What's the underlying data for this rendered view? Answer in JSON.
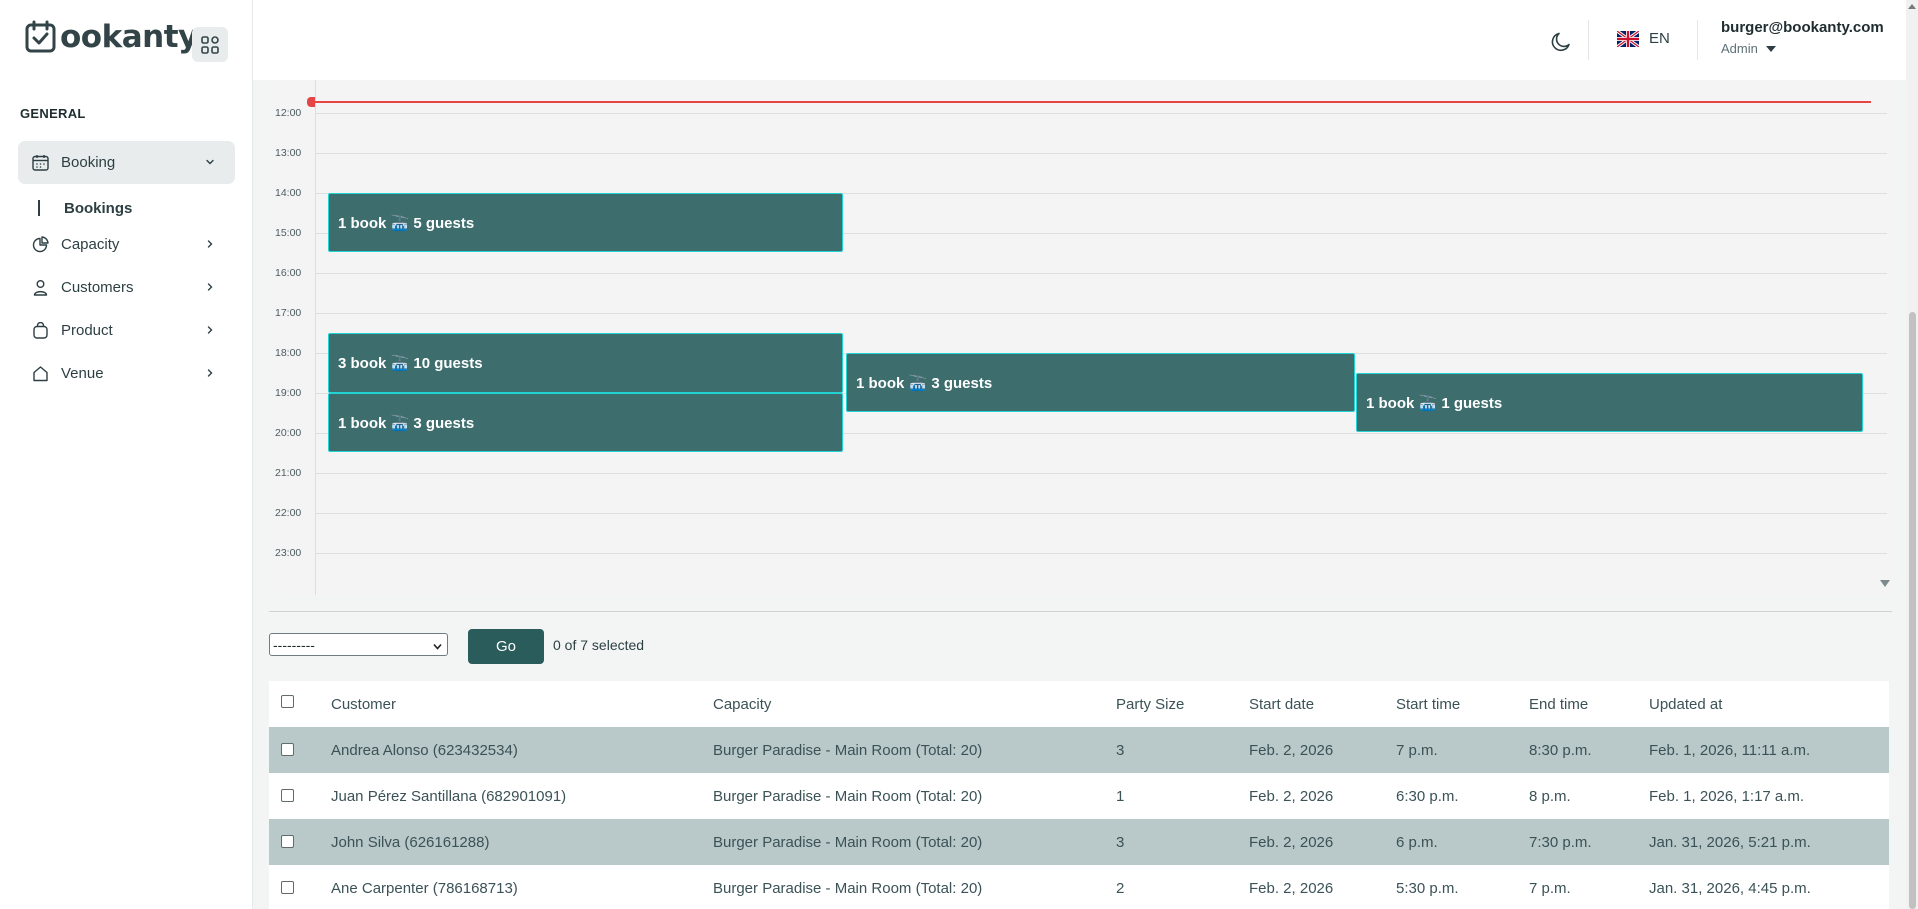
{
  "brand": {
    "logo_text": "ookanty"
  },
  "sidebar": {
    "section_label": "GENERAL",
    "items": [
      {
        "label": "Booking",
        "icon": "calendar-icon"
      },
      {
        "label": "Capacity",
        "icon": "pie-chart-icon"
      },
      {
        "label": "Customers",
        "icon": "user-icon"
      },
      {
        "label": "Product",
        "icon": "bag-icon"
      },
      {
        "label": "Venue",
        "icon": "home-icon"
      }
    ],
    "sub_item": {
      "label": "Bookings"
    }
  },
  "header": {
    "language": "EN",
    "user_email": "burger@bookanty.com",
    "user_role": "Admin"
  },
  "calendar": {
    "hours": [
      "12:00",
      "13:00",
      "14:00",
      "15:00",
      "16:00",
      "17:00",
      "18:00",
      "19:00",
      "20:00",
      "21:00",
      "22:00",
      "23:00"
    ],
    "events": [
      {
        "text": "1 book 🚠 5 guests"
      },
      {
        "text": "3 book 🚠 10 guests"
      },
      {
        "text": "1 book 🚠 3 guests"
      },
      {
        "text": "1 book 🚠 3 guests"
      },
      {
        "text": "1 book 🚠 1 guests"
      }
    ]
  },
  "actions": {
    "select_value": "---------",
    "go_label": "Go",
    "selected_text": "0 of 7 selected"
  },
  "table": {
    "columns": [
      "Customer",
      "Capacity",
      "Party Size",
      "Start date",
      "Start time",
      "End time",
      "Updated at"
    ],
    "rows": [
      [
        "Andrea Alonso (623432534)",
        "Burger Paradise - Main Room (Total: 20)",
        "3",
        "Feb. 2, 2026",
        "7 p.m.",
        "8:30 p.m.",
        "Feb. 1, 2026, 11:11 a.m."
      ],
      [
        "Juan Pérez Santillana (682901091)",
        "Burger Paradise - Main Room (Total: 20)",
        "1",
        "Feb. 2, 2026",
        "6:30 p.m.",
        "8 p.m.",
        "Feb. 1, 2026, 1:17 a.m."
      ],
      [
        "John Silva (626161288)",
        "Burger Paradise - Main Room (Total: 20)",
        "3",
        "Feb. 2, 2026",
        "6 p.m.",
        "7:30 p.m.",
        "Jan. 31, 2026, 5:21 p.m."
      ],
      [
        "Ane Carpenter (786168713)",
        "Burger Paradise - Main Room (Total: 20)",
        "2",
        "Feb. 2, 2026",
        "5:30 p.m.",
        "7 p.m.",
        "Jan. 31, 2026, 4:45 p.m."
      ]
    ]
  },
  "colors": {
    "event_fill": "#3d6d6d",
    "event_border": "#22d3d3",
    "now_line": "#e54545",
    "row_highlight": "#b9c8c8",
    "primary_button": "#2a5c5c"
  }
}
